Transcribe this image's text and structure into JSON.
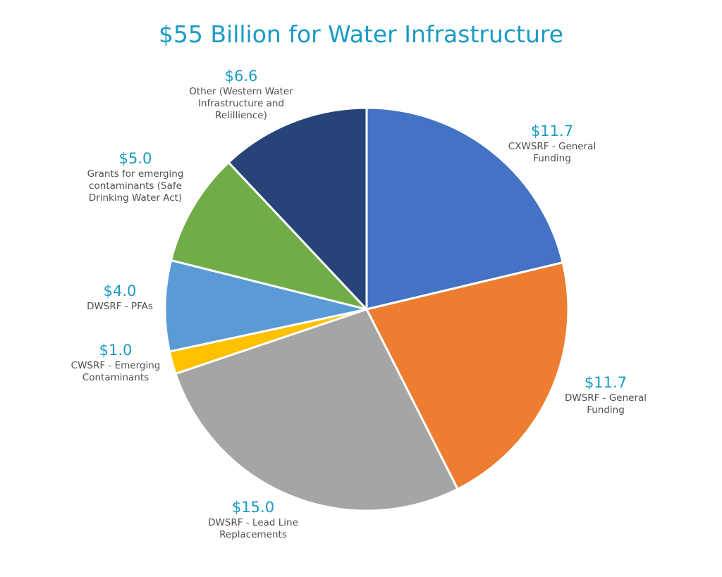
{
  "chart_data": {
    "type": "pie",
    "title": "$55 Billion for Water Infrastructure",
    "slices": [
      {
        "value": 11.7,
        "value_label": "$11.7",
        "label_lines": [
          "CXWSRF - General",
          "Funding"
        ],
        "color": "#4472c4"
      },
      {
        "value": 11.7,
        "value_label": "$11.7",
        "label_lines": [
          "DWSRF - General",
          "Funding"
        ],
        "color": "#ed7d31"
      },
      {
        "value": 15.0,
        "value_label": "$15.0",
        "label_lines": [
          "DWSRF - Lead Line",
          "Replacements"
        ],
        "color": "#a5a5a5"
      },
      {
        "value": 1.0,
        "value_label": "$1.0",
        "label_lines": [
          "CWSRF - Emerging",
          "Contaminants"
        ],
        "color": "#ffc000"
      },
      {
        "value": 4.0,
        "value_label": "$4.0",
        "label_lines": [
          "DWSRF - PFAs"
        ],
        "color": "#5b9bd5"
      },
      {
        "value": 5.0,
        "value_label": "$5.0",
        "label_lines": [
          "Grants for emerging",
          "contaminants (Safe",
          "Drinking Water Act)"
        ],
        "color": "#70ad47"
      },
      {
        "value": 6.6,
        "value_label": "$6.6",
        "label_lines": [
          "Other (Western Water",
          "Infrastructure and",
          "Relillience)"
        ],
        "color": "#264478"
      }
    ],
    "start_angle": "12 o'clock",
    "direction": "clockwise",
    "legend": "none"
  }
}
